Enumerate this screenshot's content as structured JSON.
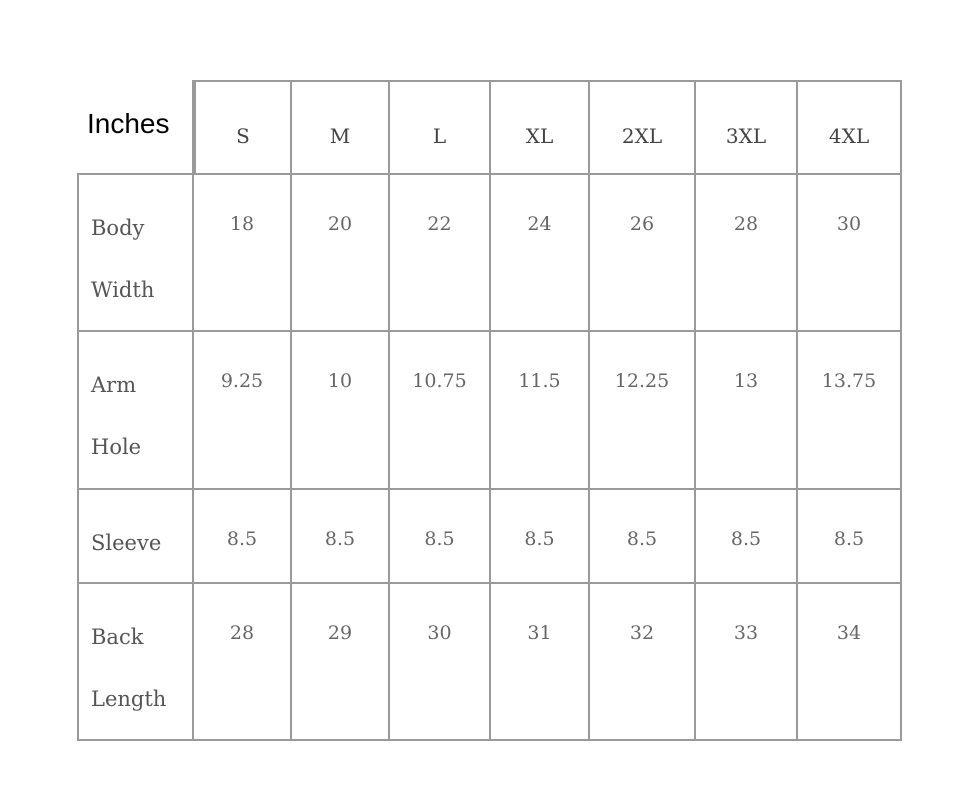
{
  "table": {
    "unit_label": "Inches",
    "columns": [
      "S",
      "M",
      "L",
      "XL",
      "2XL",
      "3XL",
      "4XL"
    ],
    "rows": [
      {
        "label_lines": [
          "Body",
          "Width"
        ],
        "values": [
          "18",
          "20",
          "22",
          "24",
          "26",
          "28",
          "30"
        ]
      },
      {
        "label_lines": [
          "Arm",
          "Hole"
        ],
        "values": [
          "9.25",
          "10",
          "10.75",
          "11.5",
          "12.25",
          "13",
          "13.75"
        ]
      },
      {
        "label_lines": [
          "Sleeve"
        ],
        "values": [
          "8.5",
          "8.5",
          "8.5",
          "8.5",
          "8.5",
          "8.5",
          "8.5"
        ]
      },
      {
        "label_lines": [
          "Back",
          "Length"
        ],
        "values": [
          "28",
          "29",
          "30",
          "31",
          "32",
          "33",
          "34"
        ]
      }
    ]
  },
  "colors": {
    "border": "#9a9a9a",
    "header_text": "#444444",
    "value_text": "#666666"
  }
}
